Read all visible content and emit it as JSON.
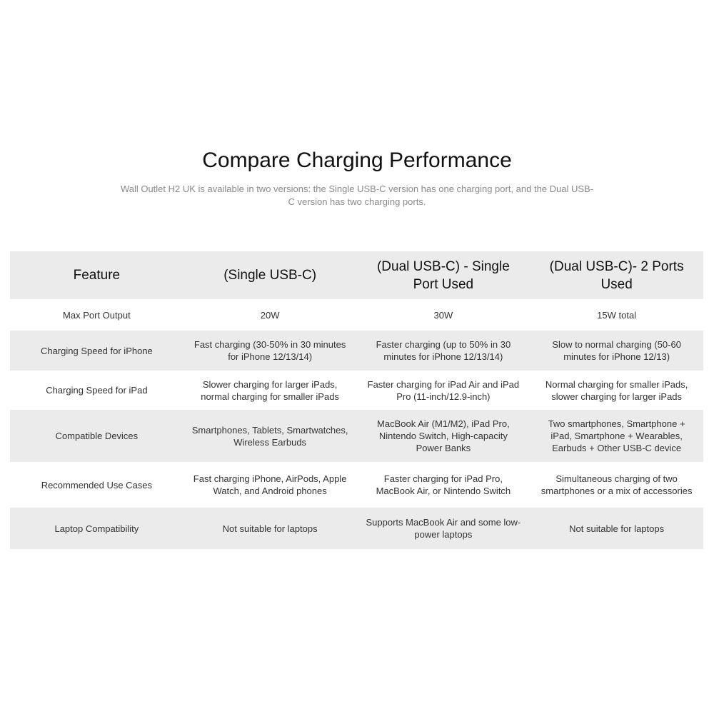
{
  "header": {
    "title": "Compare Charging Performance",
    "subtitle": "Wall Outlet H2 UK is available in two versions: the Single USB-C version has one charging port, and the Dual USB-C version has two charging ports."
  },
  "table": {
    "columns": [
      "Feature",
      "(Single USB-C)",
      "(Dual USB-C) - Single Port Used",
      "(Dual USB-C)- 2 Ports Used"
    ],
    "rows": [
      [
        "Max Port Output",
        "20W",
        "30W",
        "15W total"
      ],
      [
        "Charging Speed for iPhone",
        "Fast charging (30-50% in 30 minutes for iPhone 12/13/14)",
        "Faster charging (up to 50% in 30 minutes for iPhone 12/13/14)",
        "Slow to normal charging (50-60 minutes for iPhone 12/13)"
      ],
      [
        "Charging Speed for iPad",
        "Slower charging for larger iPads, normal charging for smaller iPads",
        "Faster charging for iPad Air and iPad Pro (11-inch/12.9-inch)",
        "Normal charging for smaller iPads, slower charging for larger iPads"
      ],
      [
        "Compatible Devices",
        "Smartphones, Tablets, Smartwatches, Wireless Earbuds",
        "MacBook Air (M1/M2), iPad Pro, Nintendo Switch, High-capacity Power Banks",
        "Two smartphones, Smartphone + iPad, Smartphone + Wearables, Earbuds + Other USB-C device"
      ],
      [
        "Recommended Use Cases",
        "Fast charging iPhone, AirPods, Apple Watch, and Android phones",
        "Faster charging for iPad Pro, MacBook Air, or Nintendo Switch",
        "Simultaneous charging of two smartphones or a mix of accessories"
      ],
      [
        "Laptop Compatibility",
        "Not suitable for laptops",
        "Supports MacBook Air and some low-power laptops",
        "Not suitable for laptops"
      ]
    ]
  }
}
